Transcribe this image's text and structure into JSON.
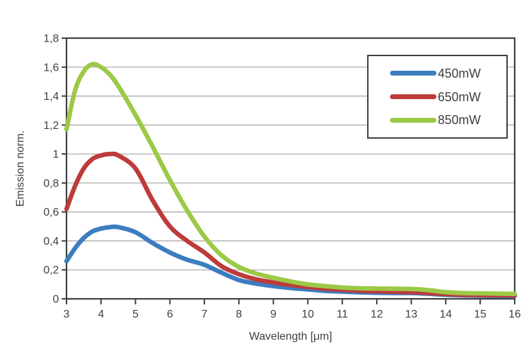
{
  "chart_data": {
    "type": "line",
    "title": "",
    "xlabel": "Wavelength [μm]",
    "ylabel": "Emission norm.",
    "xlim": [
      3,
      16
    ],
    "ylim": [
      0,
      1.8
    ],
    "x_ticks": [
      3,
      4,
      5,
      6,
      7,
      8,
      9,
      10,
      11,
      12,
      13,
      14,
      15,
      16
    ],
    "y_ticks": [
      0,
      0.2,
      0.4,
      0.6,
      0.8,
      1,
      1.2,
      1.4,
      1.6,
      1.8
    ],
    "y_tick_labels": [
      "0",
      "0,2",
      "0,4",
      "0,6",
      "0,8",
      "1",
      "1,2",
      "1,4",
      "1,6",
      "1,8"
    ],
    "grid": "horizontal",
    "legend_position": "top-right",
    "colors": {
      "axis": "#3F3F3F",
      "gridline": "#ABABAB",
      "background": "#FFFFFF"
    },
    "x": [
      3,
      3.25,
      3.5,
      3.75,
      4,
      4.25,
      4.5,
      5,
      5.5,
      6,
      6.5,
      7,
      7.5,
      8,
      8.5,
      9,
      9.5,
      10,
      10.5,
      11,
      11.5,
      12,
      12.5,
      13,
      13.5,
      14,
      14.5,
      15,
      15.5,
      16
    ],
    "series": [
      {
        "name": "450mW",
        "color": "#3B7DBF",
        "values": [
          0.26,
          0.35,
          0.42,
          0.465,
          0.485,
          0.495,
          0.495,
          0.46,
          0.385,
          0.32,
          0.27,
          0.235,
          0.18,
          0.13,
          0.105,
          0.088,
          0.075,
          0.065,
          0.055,
          0.05,
          0.045,
          0.042,
          0.04,
          0.04,
          0.035,
          0.028,
          0.024,
          0.022,
          0.02,
          0.02
        ]
      },
      {
        "name": "650mW",
        "color": "#BE3B3B",
        "values": [
          0.62,
          0.78,
          0.9,
          0.965,
          0.99,
          1.0,
          0.99,
          0.9,
          0.68,
          0.5,
          0.4,
          0.32,
          0.225,
          0.17,
          0.135,
          0.113,
          0.095,
          0.082,
          0.07,
          0.062,
          0.056,
          0.052,
          0.049,
          0.046,
          0.04,
          0.033,
          0.028,
          0.026,
          0.025,
          0.024
        ]
      },
      {
        "name": "850mW",
        "color": "#9CC946",
        "values": [
          1.17,
          1.44,
          1.57,
          1.62,
          1.6,
          1.55,
          1.47,
          1.27,
          1.05,
          0.82,
          0.61,
          0.43,
          0.3,
          0.22,
          0.175,
          0.145,
          0.12,
          0.1,
          0.088,
          0.078,
          0.073,
          0.071,
          0.07,
          0.068,
          0.06,
          0.046,
          0.04,
          0.038,
          0.036,
          0.035
        ]
      }
    ]
  }
}
